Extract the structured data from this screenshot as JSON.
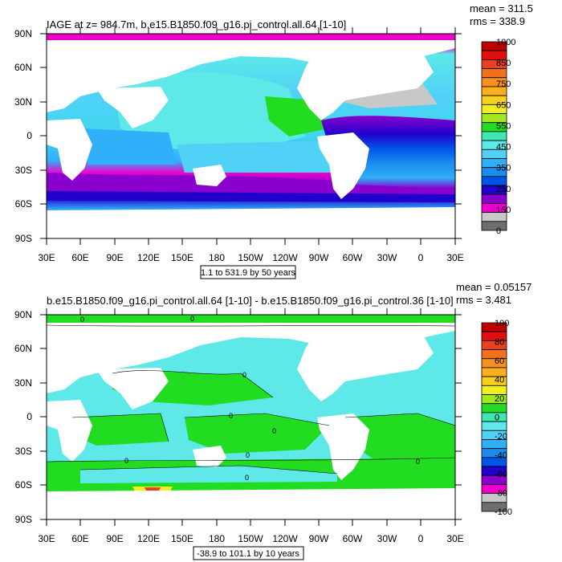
{
  "chart_data": [
    {
      "type": "heatmap",
      "title": "IAGE at z= 984.7m, b.e15.B1850.f09_g16.pi_control.all.64 [1-10]",
      "stats": [
        "mean = 311.5",
        "rms = 338.9"
      ],
      "contour_info": "1.1 to 531.9 by 50 years",
      "x_ticks": [
        "30E",
        "60E",
        "90E",
        "120E",
        "150E",
        "180",
        "150W",
        "120W",
        "90W",
        "60W",
        "30W",
        "0",
        "30E"
      ],
      "y_ticks": [
        "90N",
        "60N",
        "30N",
        "0",
        "30S",
        "60S",
        "90S"
      ],
      "xlim": [
        30,
        390
      ],
      "ylim": [
        -90,
        90
      ],
      "colorbar": {
        "labels": [
          "1000",
          "850",
          "750",
          "650",
          "550",
          "450",
          "350",
          "250",
          "150",
          "0"
        ],
        "levels": [
          0,
          50,
          100,
          150,
          200,
          250,
          300,
          350,
          400,
          450,
          500,
          550,
          600,
          650,
          700,
          750,
          800,
          850,
          900,
          950,
          1000
        ],
        "colors": [
          "#6e6e6e",
          "#c8c8c8",
          "#ee00cc",
          "#8a00cc",
          "#2200cc",
          "#0055e8",
          "#1a8cf0",
          "#30b0f8",
          "#50d2f8",
          "#5ee8e8",
          "#40e8b0",
          "#22dc22",
          "#a0e820",
          "#f0f020",
          "#f8d020",
          "#f8b020",
          "#f89020",
          "#f07020",
          "#e84020",
          "#e01010",
          "#c00000"
        ]
      }
    },
    {
      "type": "heatmap",
      "title": "b.e15.B1850.f09_g16.pi_control.all.64 [1-10] - b.e15.B1850.f09_g16.pi_control.36 [1-10]",
      "stats": [
        "mean = 0.05157",
        "rms = 3.481"
      ],
      "contour_info": "-38.9 to 101.1 by 10 years",
      "x_ticks": [
        "30E",
        "60E",
        "90E",
        "120E",
        "150E",
        "180",
        "150W",
        "120W",
        "90W",
        "60W",
        "30W",
        "0",
        "30E"
      ],
      "y_ticks": [
        "90N",
        "60N",
        "30N",
        "0",
        "30S",
        "60S",
        "90S"
      ],
      "xlim": [
        30,
        390
      ],
      "ylim": [
        -90,
        90
      ],
      "contour_label": "0",
      "colorbar": {
        "labels": [
          "100",
          "80",
          "60",
          "40",
          "20",
          "0",
          "-20",
          "-40",
          "-60",
          "-80",
          "-100"
        ],
        "levels": [
          -100,
          -90,
          -80,
          -70,
          -60,
          -50,
          -40,
          -30,
          -20,
          -10,
          0,
          10,
          20,
          30,
          40,
          50,
          60,
          70,
          80,
          90,
          100
        ],
        "colors": [
          "#6e6e6e",
          "#c8c8c8",
          "#ee00cc",
          "#8a00cc",
          "#2200cc",
          "#0055e8",
          "#1a8cf0",
          "#30b0f8",
          "#50d2f8",
          "#5ee8e8",
          "#40e8b0",
          "#22dc22",
          "#a0e820",
          "#f0f020",
          "#f8d020",
          "#f8b020",
          "#f89020",
          "#f07020",
          "#e84020",
          "#e01010",
          "#c00000"
        ]
      }
    }
  ]
}
